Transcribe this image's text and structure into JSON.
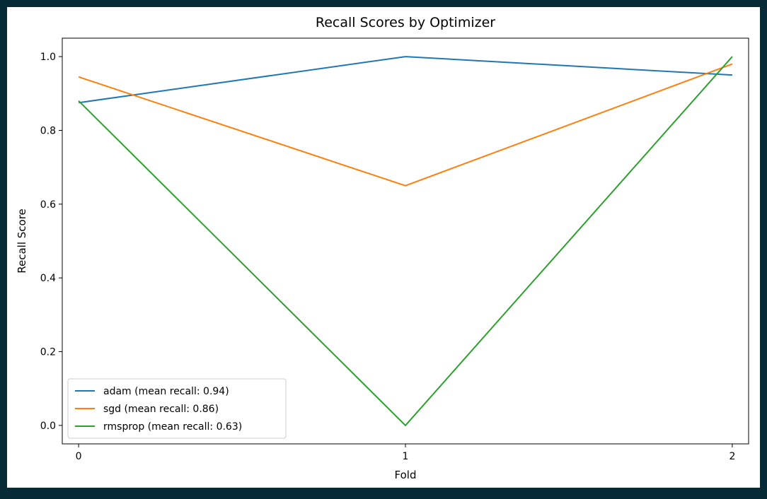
{
  "chart_data": {
    "type": "line",
    "title": "Recall Scores by Optimizer",
    "xlabel": "Fold",
    "ylabel": "Recall Score",
    "x": [
      0,
      1,
      2
    ],
    "xticks": [
      "0",
      "1",
      "2"
    ],
    "yticks": [
      "0.0",
      "0.2",
      "0.4",
      "0.6",
      "0.8",
      "1.0"
    ],
    "xlim": [
      -0.05,
      2.05
    ],
    "ylim": [
      -0.05,
      1.05
    ],
    "grid": false,
    "legend_position": "lower-left",
    "series": [
      {
        "name": "adam (mean recall: 0.94)",
        "values": [
          0.875,
          1.0,
          0.95
        ],
        "color": "#1f77b4"
      },
      {
        "name": "sgd (mean recall: 0.86)",
        "values": [
          0.945,
          0.65,
          0.98
        ],
        "color": "#ff7f0e"
      },
      {
        "name": "rmsprop (mean recall: 0.63)",
        "values": [
          0.88,
          0.0,
          1.0
        ],
        "color": "#2ca02c"
      }
    ]
  }
}
